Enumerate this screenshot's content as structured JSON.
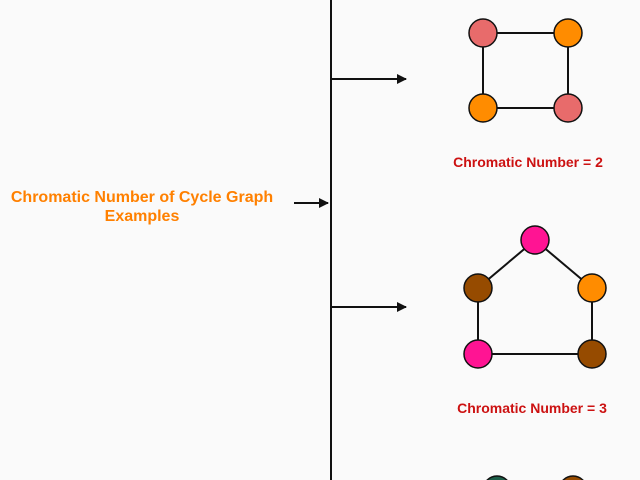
{
  "title_line1": "Chromatic Number of Cycle Graph",
  "title_line2": "Examples",
  "colors": {
    "title": "#ff8000",
    "caption": "#cc1111",
    "line": "#111111",
    "background": "#fafafa"
  },
  "examples": [
    {
      "caption": "Chromatic Number = 2",
      "node_colors": [
        "#e86b6b",
        "#ff8c00",
        "#e86b6b",
        "#ff8c00"
      ]
    },
    {
      "caption": "Chromatic Number = 3",
      "node_colors": [
        "#ff1493",
        "#964b00",
        "#ff8c00",
        "#ff1493",
        "#964b00"
      ]
    },
    {
      "node_colors": [
        "#1c5e48",
        "#964b00"
      ]
    }
  ]
}
